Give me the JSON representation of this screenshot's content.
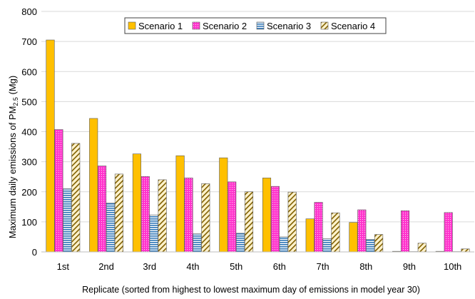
{
  "chart_data": {
    "type": "bar",
    "title": "",
    "xlabel": "Replicate (sorted from highest to lowest maximum day of emissions in model year 30)",
    "ylabel_main": "Maximum  daily emissions of PM",
    "ylabel_sub": "2.5",
    "ylabel_unit": " (Mg)",
    "ylim": [
      0,
      800
    ],
    "yticks": [
      "0",
      "100",
      "200",
      "300",
      "400",
      "500",
      "600",
      "700",
      "800"
    ],
    "grid": true,
    "legend_position": "top",
    "categories": [
      "1st",
      "2nd",
      "3rd",
      "4th",
      "5th",
      "6th",
      "7th",
      "8th",
      "9th",
      "10th"
    ],
    "series": [
      {
        "name": "Scenario 1",
        "color": "#FFC000",
        "pattern": "solid",
        "values": [
          705,
          444,
          326,
          320,
          313,
          246,
          110,
          98,
          2,
          2
        ]
      },
      {
        "name": "Scenario 2",
        "color": "#FF33CC",
        "pattern": "dots",
        "values": [
          407,
          286,
          251,
          246,
          233,
          218,
          165,
          140,
          137,
          131
        ]
      },
      {
        "name": "Scenario 3",
        "color": "#9DC3E6",
        "pattern": "hlines",
        "values": [
          210,
          163,
          123,
          60,
          62,
          50,
          44,
          42,
          1,
          1
        ]
      },
      {
        "name": "Scenario 4",
        "color": "#FFF2CC",
        "pattern": "diag",
        "values": [
          361,
          259,
          240,
          227,
          200,
          199,
          130,
          58,
          29,
          10
        ]
      }
    ]
  }
}
